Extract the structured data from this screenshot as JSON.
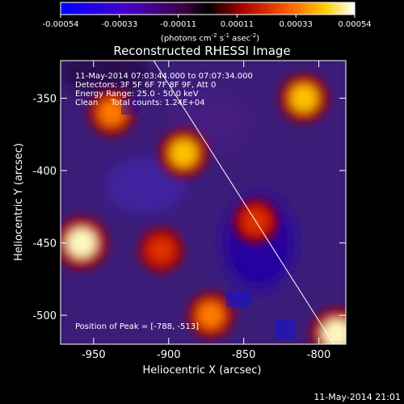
{
  "colorbar": {
    "ticks": [
      "-0.00054",
      "-0.00033",
      "-0.00011",
      "0.00011",
      "0.00033",
      "0.00054"
    ],
    "unit_prefix": "(photons cm",
    "unit_sup1": "-2",
    "unit_mid": " s",
    "unit_sup2": "-1",
    "unit_mid2": " asec",
    "unit_sup3": "-2",
    "unit_suffix": ")"
  },
  "footer_timestamp": "11-May-2014 21:01",
  "chart_data": {
    "type": "heatmap",
    "title": "Reconstructed RHESSI Image",
    "xlabel": "Heliocentric X (arcsec)",
    "ylabel": "Heliocentric Y (arcsec)",
    "xlim": [
      -972,
      -782
    ],
    "ylim": [
      -520,
      -324
    ],
    "x_ticks": [
      -950,
      -900,
      -850,
      -800
    ],
    "y_ticks": [
      -350,
      -400,
      -450,
      -500
    ],
    "x_tick_labels": [
      "-950",
      "-900",
      "-850",
      "-800"
    ],
    "y_tick_labels": [
      "-350",
      "-400",
      "-450",
      "-500"
    ],
    "color_range": [
      -0.00054,
      0.00054
    ],
    "colormap": "blue-purple-red-yellow-white",
    "info_lines": [
      "11-May-2014 07:03:44.000 to 07:07:34.000",
      "Detectors: 3F 5F 6F 7F 8F 9F, Att 0",
      "Energy Range: 25.0 - 50.0 keV",
      "Clean     Total counts: 1.24E+04"
    ],
    "peak_label": "Position of Peak = [-788, -513]",
    "peak": {
      "x": -788,
      "y": -513
    },
    "limb_line": {
      "x": [
        -910,
        -790
      ],
      "y": [
        -324,
        -520
      ]
    },
    "bright_features": [
      {
        "x": -958,
        "y": -450,
        "intensity": 0.00054
      },
      {
        "x": -890,
        "y": -388,
        "intensity": 0.00045
      },
      {
        "x": -938,
        "y": -360,
        "intensity": 0.0004
      },
      {
        "x": -810,
        "y": -350,
        "intensity": 0.00045
      },
      {
        "x": -905,
        "y": -455,
        "intensity": 0.00035
      },
      {
        "x": -842,
        "y": -435,
        "intensity": 0.00035
      },
      {
        "x": -872,
        "y": -500,
        "intensity": 0.0004
      },
      {
        "x": -788,
        "y": -513,
        "intensity": 0.00054
      }
    ]
  },
  "colors": {
    "background": "#000000",
    "foreground": "#ffffff"
  }
}
